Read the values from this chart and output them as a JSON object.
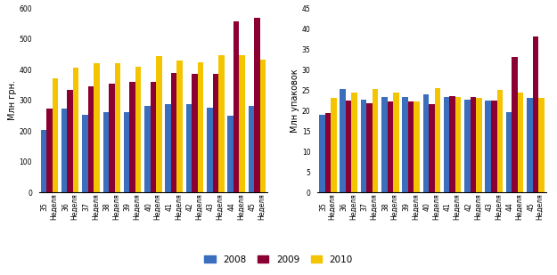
{
  "weeks_num": [
    "35",
    "36",
    "37",
    "38",
    "39",
    "40",
    "41",
    "42",
    "43",
    "44",
    "45"
  ],
  "weeks_label": "Неделя",
  "chart1": {
    "ylabel": "Млн грн.",
    "ylim": [
      0,
      600
    ],
    "yticks": [
      0,
      100,
      200,
      300,
      400,
      500,
      600
    ],
    "data_2008": [
      205,
      272,
      252,
      263,
      263,
      282,
      287,
      287,
      277,
      249,
      282
    ],
    "data_2009": [
      273,
      335,
      345,
      355,
      360,
      360,
      388,
      385,
      385,
      558,
      570
    ],
    "data_2010": [
      373,
      408,
      422,
      420,
      410,
      445,
      430,
      425,
      448,
      447,
      432
    ]
  },
  "chart2": {
    "ylabel": "Млн упаковок",
    "ylim": [
      0,
      45
    ],
    "yticks": [
      0,
      5,
      10,
      15,
      20,
      25,
      30,
      35,
      40,
      45
    ],
    "data_2008": [
      19.0,
      25.2,
      22.7,
      23.3,
      23.3,
      24.0,
      23.3,
      22.7,
      22.5,
      19.7,
      23.0
    ],
    "data_2009": [
      19.5,
      22.5,
      21.8,
      22.2,
      22.2,
      21.5,
      23.5,
      23.3,
      22.5,
      33.0,
      38.2
    ],
    "data_2010": [
      23.0,
      24.5,
      25.2,
      24.5,
      22.2,
      25.5,
      23.3,
      23.2,
      25.0,
      24.5,
      23.0
    ]
  },
  "colors": {
    "2008": "#3b6fbe",
    "2009": "#8b0032",
    "2010": "#f5c400"
  },
  "legend_labels": [
    "2008",
    "2009",
    "2010"
  ],
  "bar_width": 0.28,
  "background_color": "#ffffff",
  "tick_fontsize": 5.5,
  "ylabel_fontsize": 7.0
}
